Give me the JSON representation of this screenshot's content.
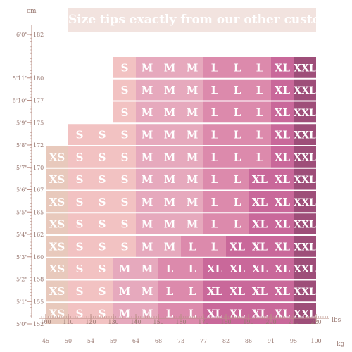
{
  "banner": "Size tips exactly from our other customers",
  "chart_data": {
    "type": "table",
    "title": "Size tips exactly from our other customers",
    "y_unit": "cm",
    "x_unit_top": "lbs",
    "x_unit_bottom": "kg",
    "weights_lbs": [
      100,
      110,
      120,
      130,
      140,
      150,
      160,
      170,
      180,
      190,
      200,
      210,
      220
    ],
    "weights_kg": [
      45,
      50,
      54,
      59,
      64,
      68,
      73,
      77,
      82,
      86,
      91,
      95,
      100
    ],
    "heights": [
      {
        "cm": 182,
        "ft_in": "6'0\""
      },
      {
        "cm": 180,
        "ft_in": "5'11\""
      },
      {
        "cm": 177,
        "ft_in": "5'10\""
      },
      {
        "cm": 175,
        "ft_in": "5'9\""
      },
      {
        "cm": 172,
        "ft_in": "5'8\""
      },
      {
        "cm": 170,
        "ft_in": "5'7\""
      },
      {
        "cm": 167,
        "ft_in": "5'6\""
      },
      {
        "cm": 165,
        "ft_in": "5'5\""
      },
      {
        "cm": 162,
        "ft_in": "5'4\""
      },
      {
        "cm": 160,
        "ft_in": "5'3\""
      },
      {
        "cm": 158,
        "ft_in": "5'2\""
      },
      {
        "cm": 155,
        "ft_in": "5'1\""
      },
      {
        "cm": 152,
        "ft_in": "5'0\""
      }
    ],
    "rows": [
      {
        "height_cm": 180,
        "cells": [
          null,
          null,
          null,
          "S",
          "M",
          "M",
          "M",
          "L",
          "L",
          "L",
          "XL",
          "XXL"
        ]
      },
      {
        "height_cm": 177,
        "cells": [
          null,
          null,
          null,
          "S",
          "M",
          "M",
          "M",
          "L",
          "L",
          "L",
          "XL",
          "XXL"
        ]
      },
      {
        "height_cm": 175,
        "cells": [
          null,
          null,
          null,
          "S",
          "M",
          "M",
          "M",
          "L",
          "L",
          "L",
          "XL",
          "XXL"
        ]
      },
      {
        "height_cm": 172,
        "cells": [
          null,
          "S",
          "S",
          "S",
          "M",
          "M",
          "M",
          "L",
          "L",
          "L",
          "XL",
          "XXL"
        ]
      },
      {
        "height_cm": 170,
        "cells": [
          "XS",
          "S",
          "S",
          "S",
          "M",
          "M",
          "M",
          "L",
          "L",
          "L",
          "XL",
          "XXL"
        ]
      },
      {
        "height_cm": 167,
        "cells": [
          "XS",
          "S",
          "S",
          "S",
          "M",
          "M",
          "M",
          "L",
          "L",
          "XL",
          "XL",
          "XXL"
        ]
      },
      {
        "height_cm": 165,
        "cells": [
          "XS",
          "S",
          "S",
          "S",
          "M",
          "M",
          "M",
          "L",
          "L",
          "XL",
          "XL",
          "XXL"
        ]
      },
      {
        "height_cm": 162,
        "cells": [
          "XS",
          "S",
          "S",
          "S",
          "M",
          "M",
          "M",
          "L",
          "L",
          "XL",
          "XL",
          "XXL"
        ]
      },
      {
        "height_cm": 160,
        "cells": [
          "XS",
          "S",
          "S",
          "S",
          "M",
          "M",
          "L",
          "L",
          "XL",
          "XL",
          "XL",
          "XXL"
        ]
      },
      {
        "height_cm": 158,
        "cells": [
          "XS",
          "S",
          "S",
          "M",
          "M",
          "L",
          "L",
          "XL",
          "XL",
          "XL",
          "XL",
          "XXL"
        ]
      },
      {
        "height_cm": 155,
        "cells": [
          "XS",
          "S",
          "S",
          "M",
          "M",
          "L",
          "L",
          "XL",
          "XL",
          "XL",
          "XL",
          "XXL"
        ]
      },
      {
        "height_cm": 152,
        "cells": [
          "XS",
          "S",
          "S",
          "M",
          "M",
          "L",
          "L",
          "XL",
          "XL",
          "XL",
          "XL",
          "XXL"
        ]
      }
    ],
    "size_colors": {
      "XS": "#e8c9bc",
      "S": "#f2c2c2",
      "M": "#e6a9bd",
      "L": "#dc8aac",
      "XL": "#c9689a",
      "XXL": "#9e4e79"
    },
    "axis_color": "#b98f86"
  }
}
